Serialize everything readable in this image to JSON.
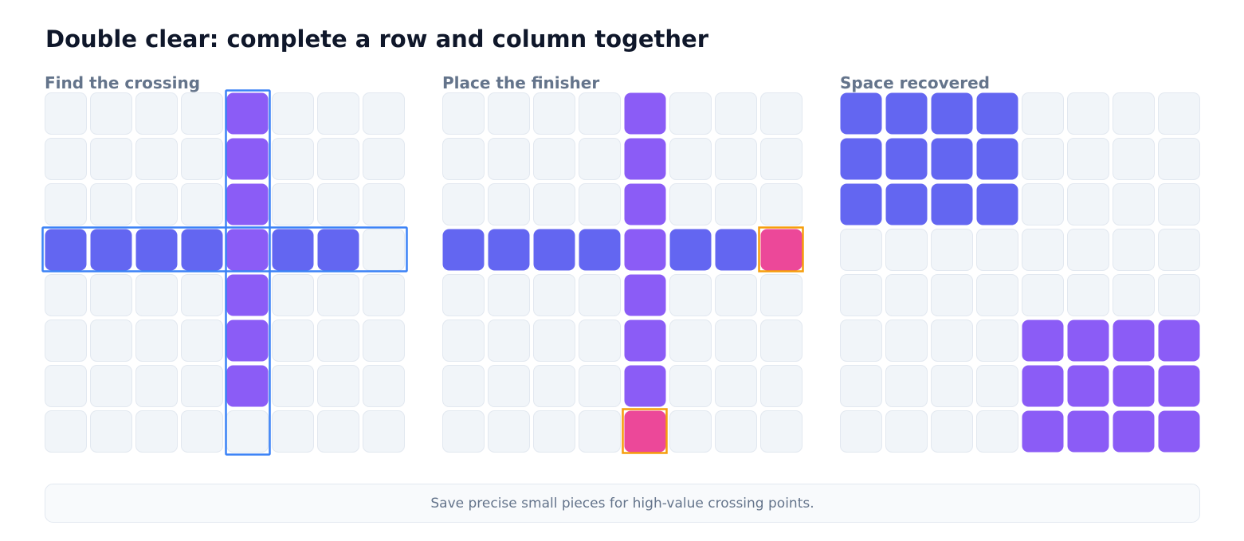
{
  "title": "Double clear: complete a row and column together",
  "panels": [
    {
      "caption": "Find the crossing"
    },
    {
      "caption": "Place the finisher"
    },
    {
      "caption": "Space recovered"
    }
  ],
  "tip": "Save precise small pieces for high-value crossing points."
}
